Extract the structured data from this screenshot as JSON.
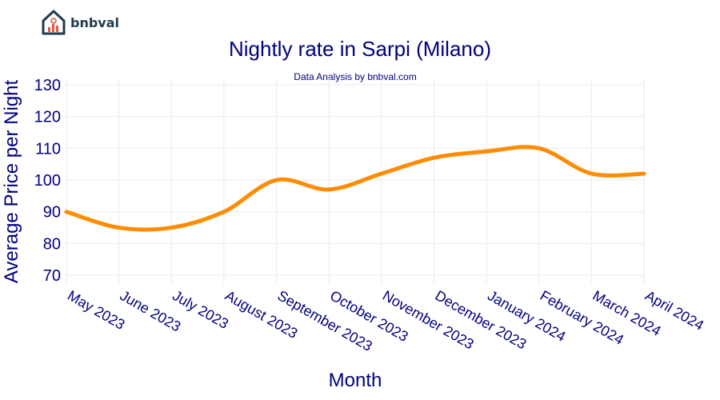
{
  "brand": {
    "name": "bnbval"
  },
  "chart_data": {
    "type": "line",
    "title": "Nightly rate in Sarpi (Milano)",
    "subtitle": "Data Analysis by bnbval.com",
    "xlabel": "Month",
    "ylabel": "Average Price per Night",
    "categories": [
      "May 2023",
      "June 2023",
      "July 2023",
      "August 2023",
      "September 2023",
      "October 2023",
      "November 2023",
      "December 2023",
      "January 2024",
      "February 2024",
      "March 2024",
      "April 2024"
    ],
    "series": [
      {
        "values": [
          90,
          85,
          85,
          90,
          100,
          97,
          102,
          107,
          109,
          110,
          102,
          102
        ]
      }
    ],
    "yticks": [
      70,
      80,
      90,
      100,
      110,
      120,
      130
    ],
    "ylim": [
      67,
      132
    ],
    "grid": true,
    "line_color": "#ff8c00",
    "title_color": "#000080"
  }
}
